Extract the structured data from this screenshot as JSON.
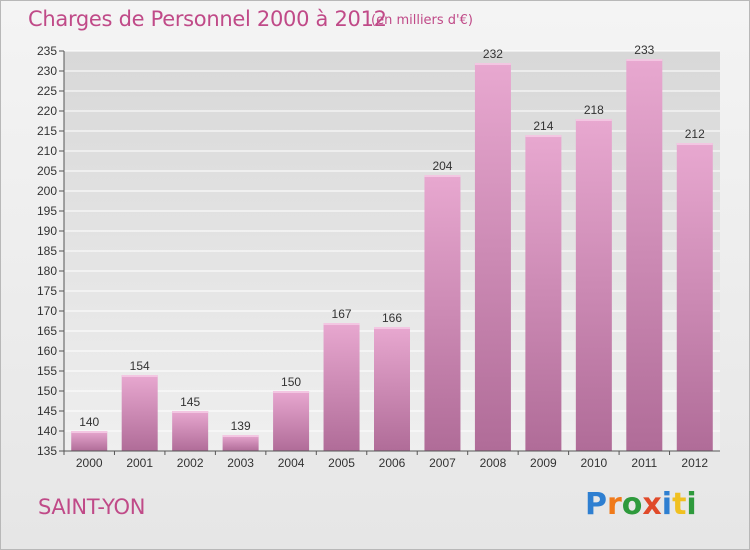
{
  "header": {
    "title": "Charges de Personnel 2000 à 2012",
    "unit_note": "(en milliers d'€)"
  },
  "footer": {
    "place_name": "SAINT-YON",
    "logo_text": "Proxiti",
    "logo_colors": [
      "#2e7fd1",
      "#f07a1a",
      "#2e9a3c",
      "#e04a2a",
      "#2e7fd1",
      "#f0c020",
      "#2e9a3c"
    ]
  },
  "colors": {
    "bar_top": "#e8a8d0",
    "bar_bottom": "#b06c98",
    "title": "#c04a88",
    "grid": "#ffffff"
  },
  "chart_data": {
    "type": "bar",
    "title": "Charges de Personnel 2000 à 2012",
    "subtitle": "(en milliers d'€)",
    "categories": [
      "2000",
      "2001",
      "2002",
      "2003",
      "2004",
      "2005",
      "2006",
      "2007",
      "2008",
      "2009",
      "2010",
      "2011",
      "2012"
    ],
    "values": [
      140,
      154,
      145,
      139,
      150,
      167,
      166,
      204,
      232,
      214,
      218,
      233,
      212
    ],
    "ylim": [
      135,
      235
    ],
    "yticks": [
      135,
      140,
      145,
      150,
      155,
      160,
      165,
      170,
      175,
      180,
      185,
      190,
      195,
      200,
      205,
      210,
      215,
      220,
      225,
      230,
      235
    ],
    "grid": true,
    "xlabel": "",
    "ylabel": ""
  }
}
